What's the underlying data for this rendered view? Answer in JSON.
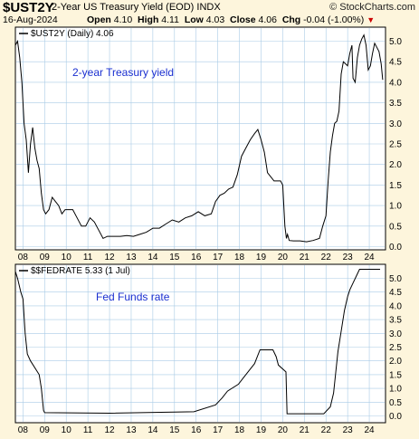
{
  "header": {
    "ticker": "$UST2Y",
    "description": "2-Year US Treasury Yield (EOD)",
    "exchange": "INDX",
    "brand": "© StockCharts.com",
    "date": "16-Aug-2024",
    "open_label": "Open",
    "open": "4.10",
    "high_label": "High",
    "high": "4.11",
    "low_label": "Low",
    "low": "4.03",
    "close_label": "Close",
    "close": "4.06",
    "chg_label": "Chg",
    "chg": "-0.04 (-1.00%)",
    "chg_arrow": "▼"
  },
  "colors": {
    "background": "#fdf5dc",
    "grid": "#a9cbe6",
    "annotation": "#1a2fd0",
    "down": "#cc0000"
  },
  "chart_data": [
    {
      "type": "line",
      "legend": "$UST2Y (Daily) 4.06",
      "annotation": "2-year Treasury yield",
      "xlabel": "",
      "ylabel": "",
      "x_ticks": [
        "08",
        "09",
        "10",
        "11",
        "12",
        "13",
        "14",
        "15",
        "16",
        "17",
        "18",
        "19",
        "20",
        "21",
        "22",
        "23",
        "24"
      ],
      "y_ticks": [
        "0.0",
        "0.5",
        "1.0",
        "1.5",
        "2.0",
        "2.5",
        "3.0",
        "3.5",
        "4.0",
        "4.5",
        "5.0"
      ],
      "ylim": [
        0,
        5.3
      ],
      "xlim": [
        2007.65,
        2024.75
      ],
      "grid": true,
      "series": [
        {
          "x": [
            2007.65,
            2007.75,
            2007.85,
            2007.95,
            2008.05,
            2008.15,
            2008.25,
            2008.35,
            2008.45,
            2008.55,
            2008.65,
            2008.75,
            2008.85,
            2008.95,
            2009.05,
            2009.2,
            2009.35,
            2009.5,
            2009.65,
            2009.8,
            2009.95,
            2010.1,
            2010.3,
            2010.5,
            2010.7,
            2010.9,
            2011.1,
            2011.3,
            2011.5,
            2011.7,
            2011.9,
            2012.2,
            2012.5,
            2012.8,
            2013.1,
            2013.4,
            2013.7,
            2014.0,
            2014.3,
            2014.6,
            2014.9,
            2015.2,
            2015.5,
            2015.8,
            2016.1,
            2016.4,
            2016.7,
            2016.9,
            2017.1,
            2017.3,
            2017.5,
            2017.7,
            2017.9,
            2018.1,
            2018.3,
            2018.5,
            2018.7,
            2018.85,
            2019.0,
            2019.15,
            2019.3,
            2019.45,
            2019.6,
            2019.75,
            2019.9,
            2020.0,
            2020.1,
            2020.17,
            2020.22,
            2020.3,
            2020.5,
            2020.8,
            2021.1,
            2021.4,
            2021.7,
            2021.85,
            2022.0,
            2022.1,
            2022.2,
            2022.3,
            2022.4,
            2022.5,
            2022.6,
            2022.7,
            2022.8,
            2022.9,
            2023.0,
            2023.1,
            2023.2,
            2023.25,
            2023.35,
            2023.45,
            2023.55,
            2023.65,
            2023.75,
            2023.85,
            2023.95,
            2024.05,
            2024.15,
            2024.25,
            2024.35,
            2024.45,
            2024.55,
            2024.62
          ],
          "y": [
            4.9,
            5.0,
            4.6,
            4.0,
            3.0,
            2.6,
            1.8,
            2.5,
            2.9,
            2.4,
            2.1,
            1.9,
            1.3,
            0.9,
            0.8,
            0.9,
            1.2,
            1.1,
            1.0,
            0.8,
            0.9,
            0.9,
            0.9,
            0.7,
            0.5,
            0.5,
            0.7,
            0.6,
            0.4,
            0.2,
            0.25,
            0.25,
            0.25,
            0.27,
            0.25,
            0.3,
            0.35,
            0.45,
            0.45,
            0.55,
            0.65,
            0.6,
            0.7,
            0.75,
            0.85,
            0.75,
            0.8,
            1.1,
            1.25,
            1.3,
            1.4,
            1.45,
            1.75,
            2.2,
            2.4,
            2.6,
            2.75,
            2.85,
            2.6,
            2.3,
            1.8,
            1.7,
            1.6,
            1.6,
            1.6,
            1.5,
            0.5,
            0.2,
            0.3,
            0.15,
            0.14,
            0.14,
            0.12,
            0.15,
            0.2,
            0.5,
            0.75,
            1.6,
            2.3,
            2.7,
            3.0,
            3.05,
            3.3,
            4.2,
            4.5,
            4.45,
            4.4,
            4.7,
            4.9,
            4.1,
            4.0,
            4.6,
            4.9,
            5.05,
            5.15,
            4.9,
            4.3,
            4.4,
            4.7,
            4.95,
            4.85,
            4.75,
            4.45,
            4.06
          ]
        }
      ]
    },
    {
      "type": "line",
      "legend": "$$FEDRATE 5.33 (1 Jul)",
      "annotation": "Fed Funds rate",
      "xlabel": "",
      "ylabel": "",
      "x_ticks": [
        "08",
        "09",
        "10",
        "11",
        "12",
        "13",
        "14",
        "15",
        "16",
        "17",
        "18",
        "19",
        "20",
        "21",
        "22",
        "23",
        "24"
      ],
      "y_ticks": [
        "0.0",
        "0.5",
        "1.0",
        "1.5",
        "2.0",
        "2.5",
        "3.0",
        "3.5",
        "4.0",
        "4.5",
        "5.0"
      ],
      "ylim": [
        -0.1,
        5.5
      ],
      "xlim": [
        2007.65,
        2024.75
      ],
      "grid": true,
      "series": [
        {
          "x": [
            2007.65,
            2007.75,
            2007.9,
            2008.0,
            2008.1,
            2008.2,
            2008.35,
            2008.75,
            2008.85,
            2008.95,
            2009.0,
            2012.0,
            2015.9,
            2016.9,
            2017.2,
            2017.45,
            2017.95,
            2018.2,
            2018.45,
            2018.7,
            2018.95,
            2019.55,
            2019.7,
            2019.8,
            2020.15,
            2020.2,
            2021.9,
            2022.2,
            2022.35,
            2022.45,
            2022.55,
            2022.7,
            2022.85,
            2023.0,
            2023.1,
            2023.25,
            2023.4,
            2023.55,
            2024.2,
            2024.5
          ],
          "y": [
            5.25,
            5.0,
            4.5,
            4.25,
            3.0,
            2.25,
            2.0,
            1.5,
            1.0,
            0.2,
            0.12,
            0.1,
            0.15,
            0.4,
            0.65,
            0.9,
            1.15,
            1.4,
            1.65,
            1.9,
            2.4,
            2.4,
            2.15,
            1.85,
            1.6,
            0.08,
            0.08,
            0.33,
            0.83,
            1.58,
            2.33,
            3.08,
            3.83,
            4.33,
            4.58,
            4.83,
            5.08,
            5.33,
            5.33,
            5.33
          ]
        }
      ]
    }
  ]
}
